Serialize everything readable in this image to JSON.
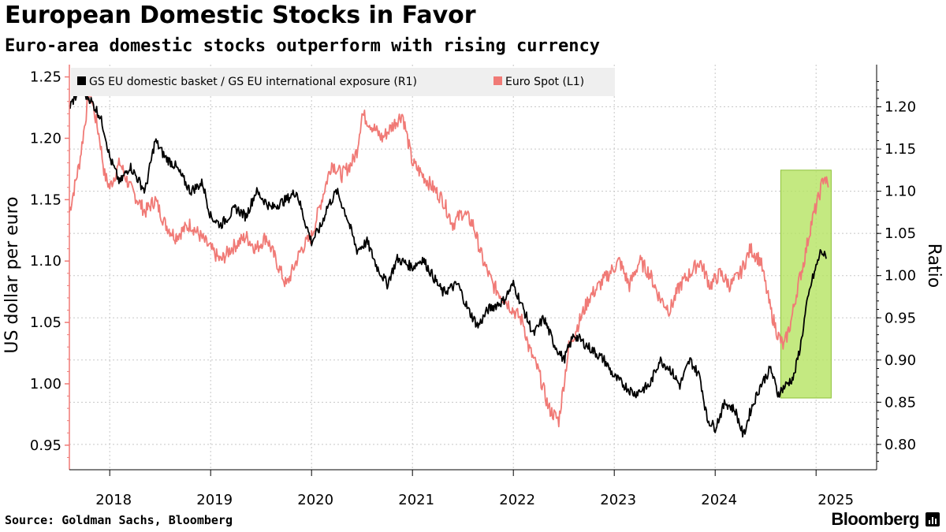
{
  "header": {
    "title": "European Domestic Stocks in Favor",
    "subtitle": "Euro-area domestic stocks outperform with rising currency"
  },
  "footer": {
    "source": "Source: Goldman Sachs, Bloomberg",
    "brand": "Bloomberg"
  },
  "chart_data": {
    "type": "line",
    "title": "European Domestic Stocks in Favor",
    "subtitle": "Euro-area domestic stocks outperform with rising currency",
    "x_start": 2017.6,
    "x_end": 2025.6,
    "x_ticks": [
      "2018",
      "2019",
      "2020",
      "2021",
      "2022",
      "2023",
      "2024",
      "2025"
    ],
    "left_axis": {
      "label": "US dollar per euro",
      "min": 0.93,
      "max": 1.26,
      "ticks": [
        1.25,
        1.2,
        1.15,
        1.1,
        1.05,
        1.0,
        0.95
      ],
      "tick_labels": [
        "1.25",
        "1.20",
        "1.15",
        "1.10",
        "1.05",
        "1.00",
        "0.95"
      ]
    },
    "right_axis": {
      "label": "Ratio",
      "min": 0.77,
      "max": 1.25,
      "ticks": [
        1.2,
        1.15,
        1.1,
        1.05,
        1.0,
        0.95,
        0.9,
        0.85,
        0.8
      ],
      "tick_labels": [
        "1.20",
        "1.15",
        "1.10",
        "1.05",
        "1.00",
        "0.95",
        "0.90",
        "0.85",
        "0.80"
      ]
    },
    "grid": true,
    "legend_position": "top-left",
    "highlight": {
      "x_start": 2024.65,
      "x_end": 2025.15,
      "color": "#b5e361",
      "axis": "right",
      "y_min": 0.855,
      "y_max": 1.125
    },
    "series": [
      {
        "name": "GS EU domestic basket / GS EU international exposure (R1)",
        "axis": "right",
        "color": "#000000",
        "points": [
          [
            2017.6,
            1.2
          ],
          [
            2017.7,
            1.22
          ],
          [
            2017.8,
            1.21
          ],
          [
            2017.9,
            1.19
          ],
          [
            2017.95,
            1.17
          ],
          [
            2018.0,
            1.14
          ],
          [
            2018.1,
            1.11
          ],
          [
            2018.2,
            1.13
          ],
          [
            2018.35,
            1.1
          ],
          [
            2018.45,
            1.16
          ],
          [
            2018.55,
            1.14
          ],
          [
            2018.65,
            1.13
          ],
          [
            2018.8,
            1.1
          ],
          [
            2018.92,
            1.11
          ],
          [
            2019.0,
            1.07
          ],
          [
            2019.1,
            1.06
          ],
          [
            2019.25,
            1.08
          ],
          [
            2019.35,
            1.07
          ],
          [
            2019.45,
            1.1
          ],
          [
            2019.6,
            1.08
          ],
          [
            2019.75,
            1.09
          ],
          [
            2019.85,
            1.1
          ],
          [
            2019.92,
            1.07
          ],
          [
            2020.0,
            1.04
          ],
          [
            2020.1,
            1.06
          ],
          [
            2020.15,
            1.08
          ],
          [
            2020.25,
            1.1
          ],
          [
            2020.35,
            1.07
          ],
          [
            2020.45,
            1.03
          ],
          [
            2020.55,
            1.04
          ],
          [
            2020.65,
            1.01
          ],
          [
            2020.75,
            0.99
          ],
          [
            2020.85,
            1.02
          ],
          [
            2021.0,
            1.01
          ],
          [
            2021.1,
            1.02
          ],
          [
            2021.2,
            1.0
          ],
          [
            2021.3,
            0.98
          ],
          [
            2021.45,
            0.99
          ],
          [
            2021.55,
            0.96
          ],
          [
            2021.65,
            0.94
          ],
          [
            2021.75,
            0.96
          ],
          [
            2021.9,
            0.97
          ],
          [
            2022.0,
            0.99
          ],
          [
            2022.1,
            0.96
          ],
          [
            2022.2,
            0.93
          ],
          [
            2022.3,
            0.95
          ],
          [
            2022.4,
            0.92
          ],
          [
            2022.5,
            0.9
          ],
          [
            2022.6,
            0.93
          ],
          [
            2022.7,
            0.92
          ],
          [
            2022.8,
            0.91
          ],
          [
            2022.9,
            0.9
          ],
          [
            2023.0,
            0.88
          ],
          [
            2023.1,
            0.87
          ],
          [
            2023.2,
            0.86
          ],
          [
            2023.35,
            0.87
          ],
          [
            2023.45,
            0.9
          ],
          [
            2023.55,
            0.89
          ],
          [
            2023.65,
            0.87
          ],
          [
            2023.75,
            0.9
          ],
          [
            2023.85,
            0.88
          ],
          [
            2023.92,
            0.83
          ],
          [
            2024.0,
            0.82
          ],
          [
            2024.1,
            0.85
          ],
          [
            2024.2,
            0.84
          ],
          [
            2024.28,
            0.81
          ],
          [
            2024.35,
            0.84
          ],
          [
            2024.45,
            0.87
          ],
          [
            2024.55,
            0.89
          ],
          [
            2024.62,
            0.86
          ],
          [
            2024.7,
            0.87
          ],
          [
            2024.78,
            0.88
          ],
          [
            2024.85,
            0.92
          ],
          [
            2024.9,
            0.96
          ],
          [
            2024.95,
            0.99
          ],
          [
            2025.0,
            1.01
          ],
          [
            2025.05,
            1.03
          ],
          [
            2025.1,
            1.02
          ]
        ]
      },
      {
        "name": "Euro Spot  (L1)",
        "axis": "left",
        "color": "#f07a76",
        "points": [
          [
            2017.6,
            1.14
          ],
          [
            2017.7,
            1.18
          ],
          [
            2017.8,
            1.24
          ],
          [
            2017.85,
            1.22
          ],
          [
            2017.9,
            1.2
          ],
          [
            2017.95,
            1.17
          ],
          [
            2018.0,
            1.16
          ],
          [
            2018.1,
            1.18
          ],
          [
            2018.2,
            1.16
          ],
          [
            2018.35,
            1.14
          ],
          [
            2018.45,
            1.15
          ],
          [
            2018.55,
            1.13
          ],
          [
            2018.65,
            1.12
          ],
          [
            2018.8,
            1.13
          ],
          [
            2018.9,
            1.12
          ],
          [
            2019.0,
            1.11
          ],
          [
            2019.1,
            1.1
          ],
          [
            2019.2,
            1.11
          ],
          [
            2019.35,
            1.12
          ],
          [
            2019.45,
            1.11
          ],
          [
            2019.55,
            1.12
          ],
          [
            2019.65,
            1.1
          ],
          [
            2019.75,
            1.08
          ],
          [
            2019.8,
            1.09
          ],
          [
            2019.9,
            1.11
          ],
          [
            2020.0,
            1.12
          ],
          [
            2020.1,
            1.15
          ],
          [
            2020.2,
            1.18
          ],
          [
            2020.3,
            1.17
          ],
          [
            2020.4,
            1.18
          ],
          [
            2020.45,
            1.19
          ],
          [
            2020.5,
            1.22
          ],
          [
            2020.6,
            1.21
          ],
          [
            2020.7,
            1.2
          ],
          [
            2020.8,
            1.21
          ],
          [
            2020.9,
            1.22
          ],
          [
            2021.0,
            1.18
          ],
          [
            2021.1,
            1.17
          ],
          [
            2021.2,
            1.16
          ],
          [
            2021.3,
            1.15
          ],
          [
            2021.4,
            1.13
          ],
          [
            2021.5,
            1.14
          ],
          [
            2021.6,
            1.13
          ],
          [
            2021.7,
            1.1
          ],
          [
            2021.8,
            1.08
          ],
          [
            2021.9,
            1.07
          ],
          [
            2022.0,
            1.06
          ],
          [
            2022.1,
            1.05
          ],
          [
            2022.15,
            1.03
          ],
          [
            2022.25,
            1.01
          ],
          [
            2022.35,
            0.98
          ],
          [
            2022.45,
            0.97
          ],
          [
            2022.55,
            1.03
          ],
          [
            2022.65,
            1.05
          ],
          [
            2022.75,
            1.07
          ],
          [
            2022.85,
            1.08
          ],
          [
            2022.95,
            1.09
          ],
          [
            2023.05,
            1.1
          ],
          [
            2023.15,
            1.08
          ],
          [
            2023.25,
            1.1
          ],
          [
            2023.35,
            1.09
          ],
          [
            2023.45,
            1.07
          ],
          [
            2023.55,
            1.06
          ],
          [
            2023.65,
            1.08
          ],
          [
            2023.75,
            1.09
          ],
          [
            2023.85,
            1.1
          ],
          [
            2023.95,
            1.08
          ],
          [
            2024.05,
            1.09
          ],
          [
            2024.15,
            1.08
          ],
          [
            2024.25,
            1.09
          ],
          [
            2024.35,
            1.11
          ],
          [
            2024.45,
            1.1
          ],
          [
            2024.55,
            1.06
          ],
          [
            2024.62,
            1.04
          ],
          [
            2024.68,
            1.03
          ],
          [
            2024.75,
            1.05
          ],
          [
            2024.82,
            1.08
          ],
          [
            2024.88,
            1.1
          ],
          [
            2024.95,
            1.13
          ],
          [
            2025.02,
            1.15
          ],
          [
            2025.08,
            1.17
          ],
          [
            2025.12,
            1.16
          ]
        ]
      }
    ]
  }
}
